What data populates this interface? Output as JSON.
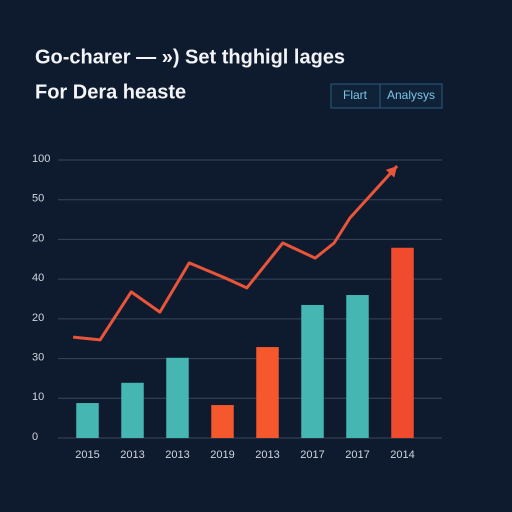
{
  "chart_data": {
    "type": "bar",
    "title": "Go-charer — ») Set thghigl lages",
    "subtitle": "For Dera heaste",
    "buttons": [
      "Flart",
      "Analysys"
    ],
    "categories": [
      "2015",
      "2013",
      "2013",
      "2019",
      "2013",
      "2017",
      "2017",
      "2014"
    ],
    "values": [
      0.88,
      1.39,
      2.02,
      0.83,
      2.29,
      3.35,
      3.6,
      4.79
    ],
    "colors": [
      "#45b6b1",
      "#45b6b1",
      "#45b6b1",
      "#f4582c",
      "#f4582c",
      "#45b6b1",
      "#45b6b1",
      "#f04a2f"
    ],
    "line": {
      "x": [
        0.18,
        0.78,
        1.47,
        2.11,
        2.76,
        3.56,
        4.04,
        4.84,
        5.56,
        5.98,
        6.33,
        7.38
      ],
      "values": [
        2.54,
        2.47,
        3.68,
        3.17,
        4.41,
        4.03,
        3.78,
        4.91,
        4.53,
        4.91,
        5.54,
        6.85
      ],
      "color": "#e8553a"
    },
    "xlim": [
      0,
      8
    ],
    "ylim": [
      0,
      7
    ],
    "yticks": [
      {
        "value": 0,
        "label": "0"
      },
      {
        "value": 1,
        "label": "10"
      },
      {
        "value": 2,
        "label": "30"
      },
      {
        "value": 3,
        "label": "20"
      },
      {
        "value": 4,
        "label": "40"
      },
      {
        "value": 5,
        "label": "20"
      },
      {
        "value": 6,
        "label": "50"
      },
      {
        "value": 7,
        "label": "100"
      }
    ],
    "grid": true
  }
}
